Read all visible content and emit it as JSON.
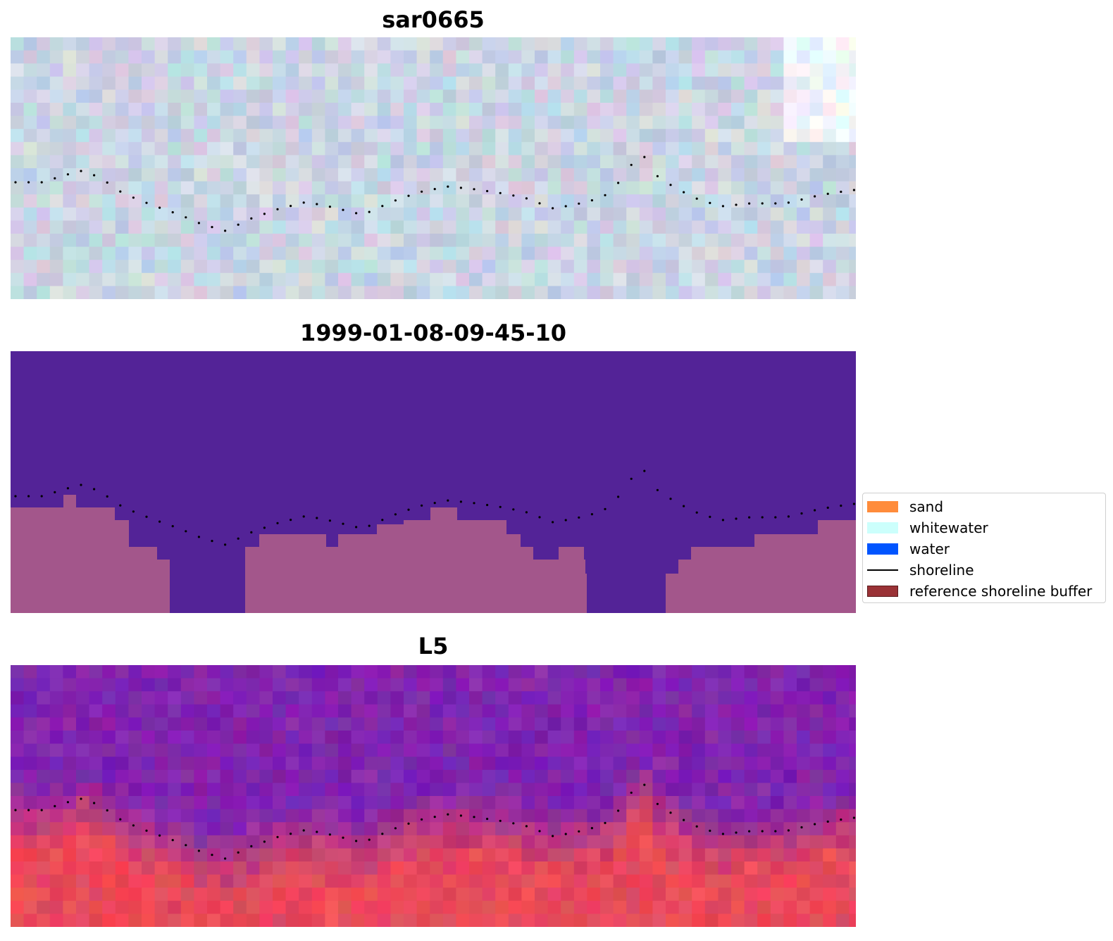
{
  "panels": [
    {
      "title": "sar0665",
      "kind": "sar"
    },
    {
      "title": "1999-01-08-09-45-10",
      "kind": "classification"
    },
    {
      "title": "L5",
      "kind": "index"
    }
  ],
  "legend": {
    "items": [
      {
        "label": "sand",
        "color": "#ff8c3b",
        "type": "patch"
      },
      {
        "label": "whitewater",
        "color": "#ccfffc",
        "type": "patch"
      },
      {
        "label": "water",
        "color": "#0055ff",
        "type": "patch"
      },
      {
        "label": "shoreline",
        "color": "#000000",
        "type": "line"
      },
      {
        "label": "reference shoreline buffer",
        "color": "#9a3236",
        "type": "patch"
      }
    ]
  },
  "colors": {
    "classification_water": "#532397",
    "classification_land": "#a3568b",
    "shoreline_points": "#000000"
  }
}
